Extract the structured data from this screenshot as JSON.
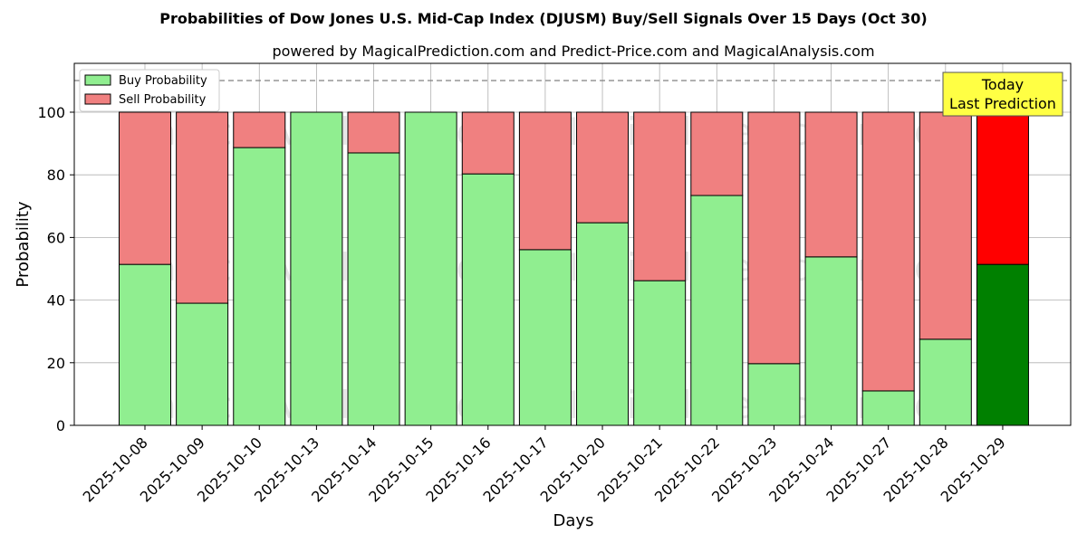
{
  "chart_data": {
    "type": "bar",
    "stacked": true,
    "title": "Probabilities of Dow Jones U.S. Mid-Cap Index (DJUSM) Buy/Sell Signals Over 15 Days (Oct 30)",
    "subtitle": "powered by MagicalPrediction.com and Predict-Price.com and MagicalAnalysis.com",
    "xlabel": "Days",
    "ylabel": "Probability",
    "ylim": [
      0,
      115.6
    ],
    "yticks": [
      0,
      20,
      40,
      60,
      80,
      100
    ],
    "grid": true,
    "legend_position": "top-left",
    "reference_line": 110,
    "categories": [
      "2025-10-08",
      "2025-10-09",
      "2025-10-10",
      "2025-10-13",
      "2025-10-14",
      "2025-10-15",
      "2025-10-16",
      "2025-10-17",
      "2025-10-20",
      "2025-10-21",
      "2025-10-22",
      "2025-10-23",
      "2025-10-24",
      "2025-10-27",
      "2025-10-28",
      "2025-10-29"
    ],
    "series": [
      {
        "name": "Buy Probability",
        "color": "#90ee90",
        "values": [
          51.4,
          39.0,
          88.7,
          100,
          87.0,
          100,
          80.3,
          56.1,
          64.7,
          46.2,
          73.4,
          19.7,
          53.8,
          11.0,
          27.5,
          51.4
        ]
      },
      {
        "name": "Sell Probability",
        "color": "#f08080",
        "values": [
          48.6,
          61.0,
          11.3,
          0,
          13.0,
          0,
          19.7,
          43.9,
          35.3,
          53.8,
          26.6,
          80.3,
          46.2,
          89.0,
          72.5,
          48.6
        ]
      }
    ],
    "highlight": {
      "buy_color": "#008000",
      "sell_color": "#ff0000"
    },
    "annotation": {
      "line1": "Today",
      "line2": "Last Prediction"
    },
    "watermarks": [
      "MagicalAnalysis.com",
      "MagicalPrediction.com"
    ]
  }
}
